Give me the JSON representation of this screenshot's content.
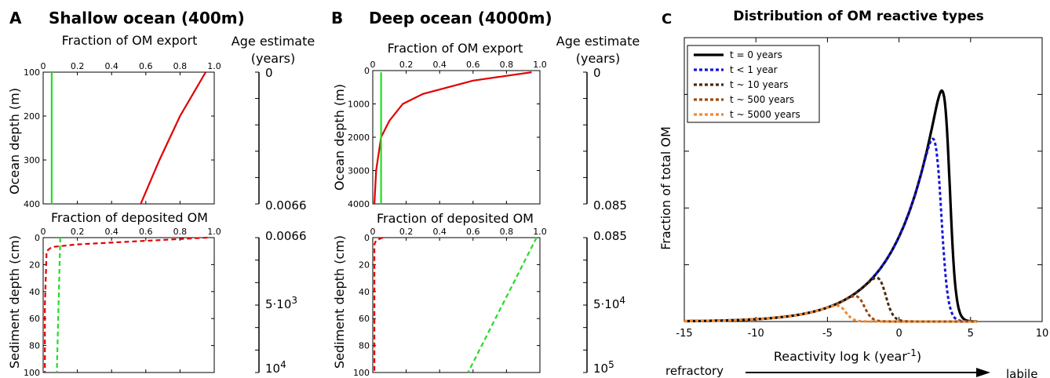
{
  "chart_data": [
    {
      "panel": "A",
      "title": "Shallow ocean (400m)",
      "subplots": [
        {
          "type": "line",
          "title": "Fraction of OM export",
          "ylabel": "Ocean depth (m)",
          "xlim": [
            0,
            1
          ],
          "ylim": [
            100,
            400
          ],
          "xticks": [
            "0",
            "0.2",
            "0.4",
            "0.6",
            "0.8",
            "1.0"
          ],
          "yticks": [
            "100",
            "200",
            "300",
            "400"
          ],
          "series": [
            {
              "color": "#e00000",
              "style": "solid",
              "x": [
                0.95,
                0.8,
                0.68,
                0.57
              ],
              "y": [
                100,
                200,
                300,
                400
              ]
            },
            {
              "color": "#22dd22",
              "style": "solid",
              "x": [
                0.05,
                0.05
              ],
              "y": [
                100,
                400
              ]
            }
          ]
        },
        {
          "type": "line",
          "title": "Fraction of deposited OM",
          "ylabel": "Sediment depth (cm)",
          "xlim": [
            0,
            1
          ],
          "ylim": [
            0,
            100
          ],
          "xticks": [
            "0",
            "0.2",
            "0.4",
            "0.6",
            "0.8",
            "1.0"
          ],
          "yticks": [
            "0",
            "20",
            "40",
            "60",
            "80",
            "100"
          ],
          "series": [
            {
              "color": "#e00000",
              "style": "dashed",
              "x": [
                0.96,
                0.5,
                0.2,
                0.05,
                0.02,
                0.01,
                0.01
              ],
              "y": [
                0,
                3,
                5,
                7,
                10,
                50,
                100
              ]
            },
            {
              "color": "#22dd22",
              "style": "dashed",
              "x": [
                0.1,
                0.08
              ],
              "y": [
                0,
                100
              ]
            }
          ]
        }
      ],
      "age_axis": {
        "title": [
          "Age estimate",
          "(years)"
        ],
        "top_labels": [
          "0",
          "0.0066"
        ],
        "bottom_labels": [
          "0.0066",
          "5·10",
          "10"
        ],
        "bottom_exponents": [
          "3",
          "4"
        ]
      }
    },
    {
      "panel": "B",
      "title": "Deep ocean (4000m)",
      "subplots": [
        {
          "type": "line",
          "title": "Fraction of OM export",
          "ylabel": "Ocean depth (m)",
          "xlim": [
            0,
            1
          ],
          "ylim": [
            0,
            4000
          ],
          "xticks": [
            "0",
            "0.2",
            "0.4",
            "0.6",
            "0.8",
            "1.0"
          ],
          "yticks": [
            "0",
            "1000",
            "2000",
            "3000",
            "4000"
          ],
          "series": [
            {
              "color": "#e00000",
              "style": "solid",
              "x": [
                0.95,
                0.6,
                0.3,
                0.18,
                0.1,
                0.05,
                0.02,
                0.01
              ],
              "y": [
                50,
                300,
                700,
                1000,
                1500,
                2000,
                3000,
                4000
              ]
            },
            {
              "color": "#22dd22",
              "style": "solid",
              "x": [
                0.05,
                0.05
              ],
              "y": [
                50,
                4000
              ]
            }
          ]
        },
        {
          "type": "line",
          "title": "Fraction of deposited OM",
          "ylabel": "Sediment depth (cm)",
          "xlim": [
            0,
            1
          ],
          "ylim": [
            0,
            100
          ],
          "xticks": [
            "0",
            "0.2",
            "0.4",
            "0.6",
            "0.8",
            "1.0"
          ],
          "yticks": [
            "0",
            "20",
            "40",
            "60",
            "80",
            "100"
          ],
          "series": [
            {
              "color": "#e00000",
              "style": "dashed",
              "x": [
                0.06,
                0.02,
                0.01,
                0.01
              ],
              "y": [
                0,
                2,
                5,
                100
              ]
            },
            {
              "color": "#22dd22",
              "style": "dashed",
              "x": [
                0.98,
                0.57
              ],
              "y": [
                0,
                100
              ]
            }
          ]
        }
      ],
      "age_axis": {
        "title": [
          "Age estimate",
          "(years)"
        ],
        "top_labels": [
          "0",
          "0.085"
        ],
        "bottom_labels": [
          "0.085",
          "5·10",
          "10"
        ],
        "bottom_exponents": [
          "4",
          "5"
        ]
      }
    },
    {
      "panel": "C",
      "type": "line",
      "title": "Distribution of OM reactive types",
      "xlabel": "Reactivity log k (year",
      "xlabel_exp": "-1",
      "xlabel_end": ")",
      "ylabel": "Fraction of total OM",
      "xlim": [
        -15,
        10
      ],
      "ylim": [
        0,
        1
      ],
      "xticks": [
        "-15",
        "-10",
        "-5",
        "0",
        "5",
        "10"
      ],
      "xtick_values": [
        -15,
        -10,
        -5,
        0,
        5,
        10
      ],
      "ytick_values": [
        0.2,
        0.4,
        0.6,
        0.8
      ],
      "legend_position": "top-left",
      "arrow": {
        "left": "refractory",
        "right": "labile"
      },
      "series": [
        {
          "name": "t = 0 years",
          "color": "#000000",
          "style": "solid",
          "cutoff": 4.2,
          "peak_scale": 1.0
        },
        {
          "name": "t < 1 year",
          "color": "#1515d8",
          "style": "dotted",
          "cutoff": 4.0,
          "peak_scale": 0.86
        },
        {
          "name": "t ~ 10 years",
          "color": "#4a2a0f",
          "style": "dotted",
          "cutoff": -1.0,
          "peak_scale": 1.0
        },
        {
          "name": "t ~ 500 years",
          "color": "#9a4a10",
          "style": "dotted",
          "cutoff": -2.5,
          "peak_scale": 1.0
        },
        {
          "name": "t ~ 5000 years",
          "color": "#f08a30",
          "style": "dotted",
          "cutoff": -3.8,
          "peak_scale": 1.0
        }
      ]
    }
  ]
}
